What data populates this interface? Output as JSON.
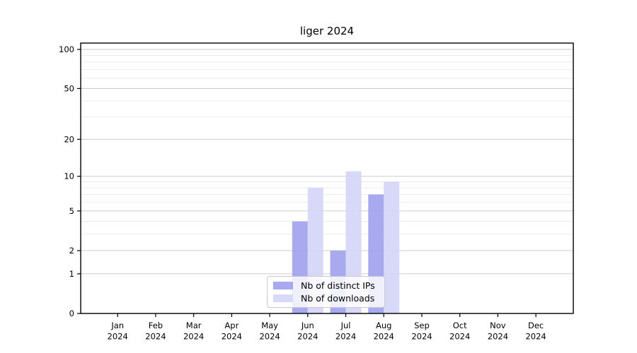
{
  "chart_data": {
    "type": "bar",
    "title": "liger 2024",
    "categories": [
      "Jan",
      "Feb",
      "Mar",
      "Apr",
      "May",
      "Jun",
      "Jul",
      "Aug",
      "Sep",
      "Oct",
      "Nov",
      "Dec"
    ],
    "category_year": "2024",
    "series": [
      {
        "name": "Nb of distinct IPs",
        "color": "#a0a0ee",
        "values": [
          0,
          0,
          0,
          0,
          0,
          4,
          2,
          7,
          0,
          0,
          0,
          0
        ]
      },
      {
        "name": "Nb of downloads",
        "color": "#d4d4f8",
        "values": [
          0,
          0,
          0,
          0,
          0,
          8,
          11,
          9,
          0,
          0,
          0,
          0
        ]
      }
    ],
    "y_axis": {
      "scale": "log1p",
      "ylim": [
        0,
        100
      ],
      "major_ticks": [
        0,
        1,
        2,
        5,
        10,
        20,
        50,
        100
      ],
      "minor_ticks": [
        3,
        4,
        6,
        7,
        8,
        9,
        30,
        40,
        60,
        70,
        80,
        90
      ]
    },
    "legend": {
      "position": "lower center"
    },
    "grid": {
      "major_color": "#c7c7c7",
      "minor_color": "#e9e9e9"
    },
    "spine_color": "#000000",
    "background": "#ffffff"
  }
}
